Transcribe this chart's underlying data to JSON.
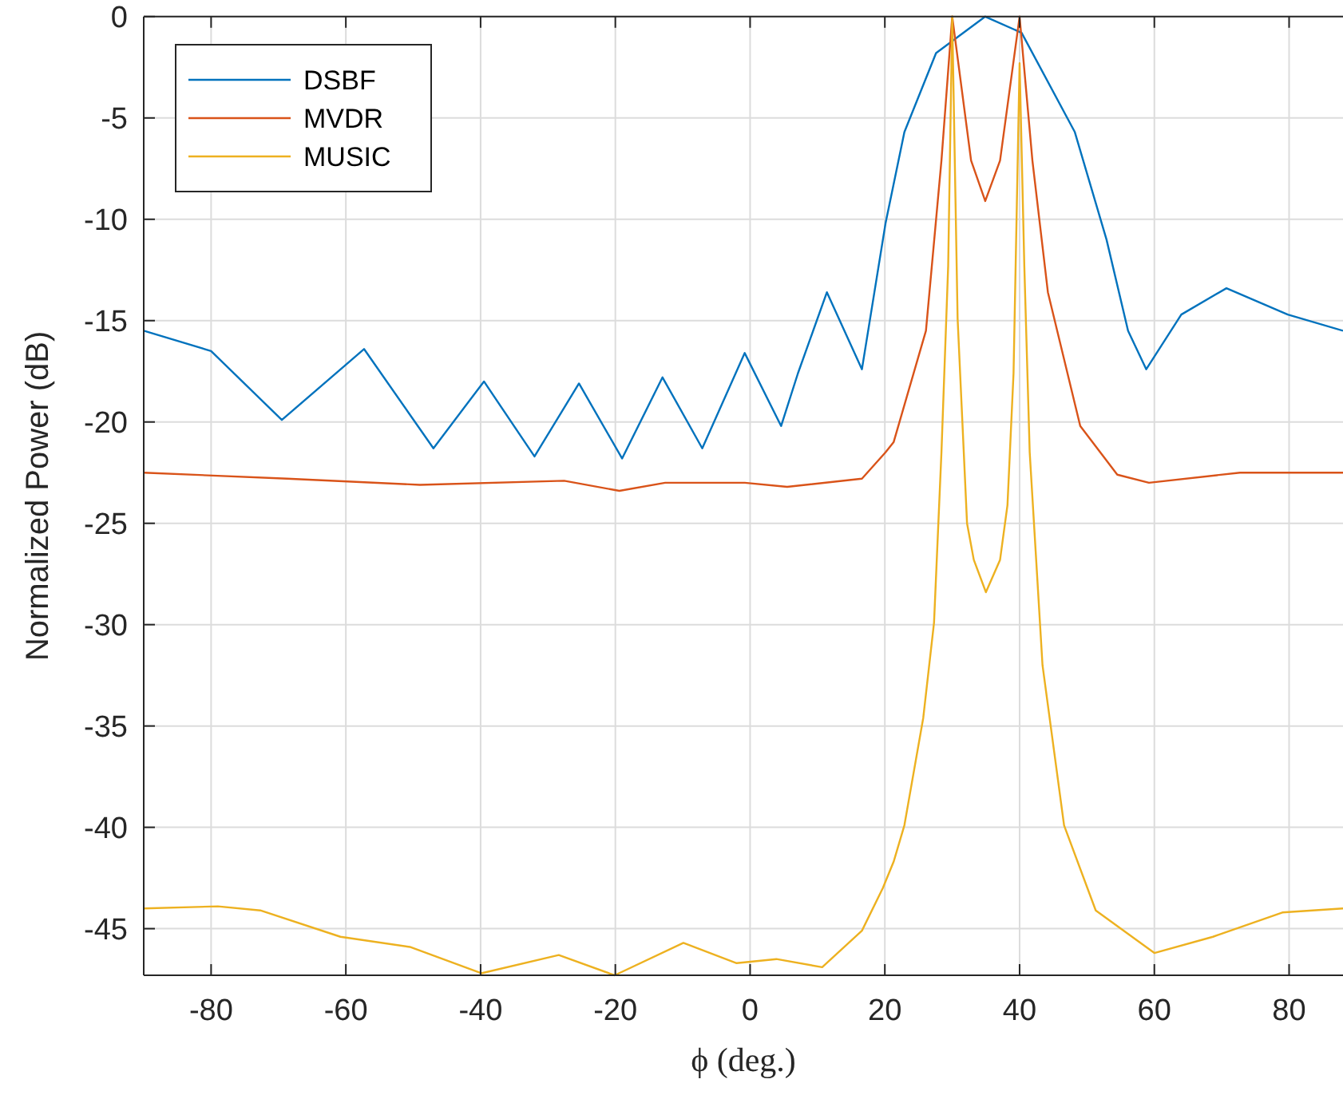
{
  "chart_data": {
    "type": "line",
    "xlabel": "ϕ (deg.)",
    "ylabel": "Normalized Power (dB)",
    "xlim": [
      -90,
      88
    ],
    "ylim": [
      -47.3,
      0
    ],
    "xticks": [
      -80,
      -60,
      -40,
      -20,
      0,
      20,
      40,
      60,
      80
    ],
    "yticks": [
      0,
      -5,
      -10,
      -15,
      -20,
      -25,
      -30,
      -35,
      -40,
      -45
    ],
    "grid": true,
    "legend": "top left",
    "line_style": "solid",
    "marker": "none",
    "series": [
      {
        "name": "DSBF",
        "color": "#0072bd",
        "x": [
          -90,
          -80,
          -69.5,
          -57.3,
          -47,
          -39.5,
          -32,
          -25.4,
          -19,
          -13,
          -7.1,
          -0.8,
          4.6,
          7.1,
          11.4,
          16.6,
          20.1,
          22.9,
          27.6,
          34.9,
          40.3,
          48.2,
          52.9,
          56.1,
          58.8,
          64,
          70.7,
          79.8,
          88
        ],
        "values": [
          -15.5,
          -16.5,
          -19.9,
          -16.4,
          -21.3,
          -18,
          -21.7,
          -18.1,
          -21.8,
          -17.8,
          -21.3,
          -16.6,
          -20.2,
          -17.6,
          -13.6,
          -17.4,
          -10.2,
          -5.7,
          -1.8,
          0,
          -0.8,
          -5.7,
          -11,
          -15.5,
          -17.4,
          -14.7,
          -13.4,
          -14.7,
          -15.5
        ]
      },
      {
        "name": "MVDR",
        "color": "#d95319",
        "x": [
          -90,
          -68.7,
          -49,
          -27.6,
          -19.4,
          -12.6,
          -0.8,
          5.5,
          16.6,
          20.1,
          21.3,
          26.1,
          28.4,
          30,
          32.8,
          34.9,
          37.1,
          40,
          41.9,
          44.2,
          49,
          54.5,
          59.2,
          72.7,
          88
        ],
        "values": [
          -22.5,
          -22.8,
          -23.1,
          -22.9,
          -23.4,
          -23,
          -23,
          -23.2,
          -22.8,
          -21.5,
          -21,
          -15.5,
          -7.1,
          0,
          -7.1,
          -9.1,
          -7.1,
          0,
          -7.1,
          -13.6,
          -20.2,
          -22.6,
          -23,
          -22.5,
          -22.5
        ]
      },
      {
        "name": "MUSIC",
        "color": "#edb120",
        "x": [
          -90,
          -79,
          -72.7,
          -60.8,
          -50.5,
          -39.9,
          -28.4,
          -20.1,
          -9.9,
          -2,
          3.9,
          10.7,
          16.6,
          19.7,
          21.3,
          22.9,
          25.7,
          27.3,
          28.4,
          29.4,
          30,
          30.8,
          32.2,
          33.2,
          35,
          37.1,
          38.2,
          39.1,
          40,
          40.7,
          41.5,
          43.4,
          46.6,
          51.3,
          60,
          68.7,
          79,
          88
        ],
        "values": [
          -44,
          -43.9,
          -44.1,
          -45.4,
          -45.9,
          -47.2,
          -46.3,
          -47.3,
          -45.7,
          -46.7,
          -46.5,
          -46.9,
          -45.1,
          -43,
          -41.7,
          -39.9,
          -34.6,
          -29.9,
          -21.5,
          -12.3,
          0,
          -14.9,
          -25,
          -26.8,
          -28.4,
          -26.8,
          -24.1,
          -17.6,
          -2.3,
          -12.3,
          -21.5,
          -32,
          -39.9,
          -44.1,
          -46.2,
          -45.4,
          -44.2,
          -44
        ]
      }
    ]
  }
}
